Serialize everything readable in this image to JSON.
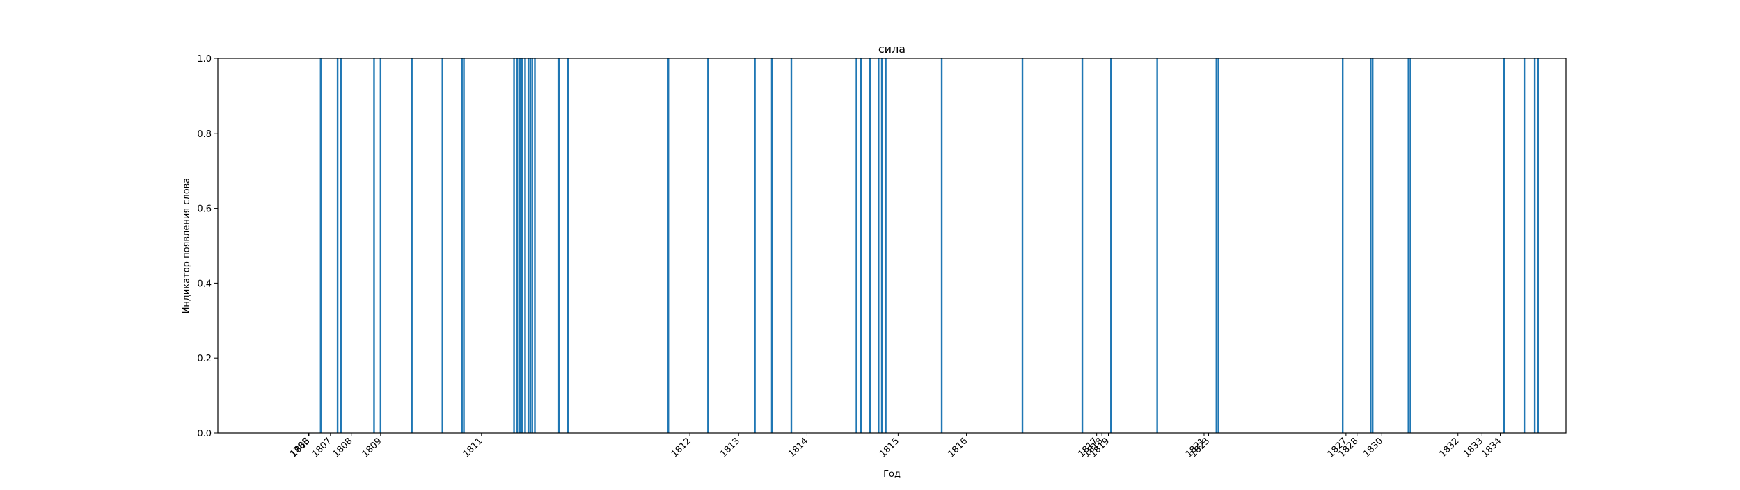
{
  "chart_data": {
    "type": "bar",
    "title": "сила",
    "xlabel": "Год",
    "ylabel": "Индикатор появления слова",
    "ylim": [
      0,
      1.0
    ],
    "yticks": [
      0.0,
      0.2,
      0.4,
      0.6,
      0.8,
      1.0
    ],
    "ytick_labels": [
      "0.0",
      "0.2",
      "0.4",
      "0.6",
      "0.8",
      "1.0"
    ],
    "xticks": [
      {
        "label": "1788",
        "pos": 13.9
      },
      {
        "label": "1805",
        "pos": 14.0
      },
      {
        "label": "1807",
        "pos": 17.3
      },
      {
        "label": "1808",
        "pos": 20.5
      },
      {
        "label": "1809",
        "pos": 25.0
      },
      {
        "label": "1811",
        "pos": 40.5
      },
      {
        "label": "1812",
        "pos": 72.5
      },
      {
        "label": "1813",
        "pos": 80.0
      },
      {
        "label": "1814",
        "pos": 90.5
      },
      {
        "label": "1815",
        "pos": 104.5
      },
      {
        "label": "1816",
        "pos": 115.0
      },
      {
        "label": "1817",
        "pos": 135.0
      },
      {
        "label": "1818",
        "pos": 135.8
      },
      {
        "label": "1819",
        "pos": 136.8
      },
      {
        "label": "1821",
        "pos": 151.5
      },
      {
        "label": "1823",
        "pos": 152.2
      },
      {
        "label": "1827",
        "pos": 173.3
      },
      {
        "label": "1828",
        "pos": 175.0
      },
      {
        "label": "1830",
        "pos": 178.8
      },
      {
        "label": "1832",
        "pos": 190.5
      },
      {
        "label": "1833",
        "pos": 194.2
      },
      {
        "label": "1834",
        "pos": 197.0
      }
    ],
    "x_range": [
      0,
      207.1
    ],
    "values": [
      15.8,
      18.4,
      18.9,
      24.0,
      25.0,
      29.8,
      34.5,
      37.5,
      37.8,
      45.5,
      46.0,
      46.4,
      46.7,
      47.2,
      47.7,
      48.0,
      48.3,
      48.7,
      52.4,
      53.8,
      69.2,
      75.3,
      82.5,
      85.1,
      88.1,
      98.1,
      98.8,
      100.2,
      101.5,
      102.0,
      102.6,
      111.2,
      123.6,
      132.8,
      137.2,
      144.3,
      153.4,
      153.7,
      172.8,
      177.1,
      177.4,
      182.9,
      183.2,
      197.6,
      200.7,
      202.3,
      202.8
    ],
    "bar_height": 1.0,
    "bar_color": "#1f77b4",
    "grid": false
  }
}
